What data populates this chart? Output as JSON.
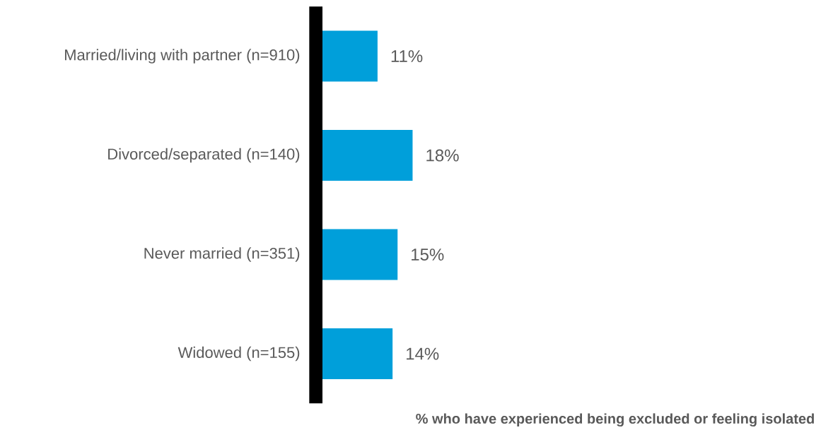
{
  "chart_data": {
    "type": "bar",
    "orientation": "horizontal",
    "xlabel": "% who have experienced being excluded or feeling isolated",
    "categories": [
      "Married/living with partner (n=910)",
      "Divorced/separated (n=140)",
      "Never married (n=351)",
      "Widowed (n=155)"
    ],
    "values": [
      11,
      18,
      15,
      14
    ],
    "value_labels": [
      "11%",
      "18%",
      "15%",
      "14%"
    ],
    "color": "#009fda"
  }
}
